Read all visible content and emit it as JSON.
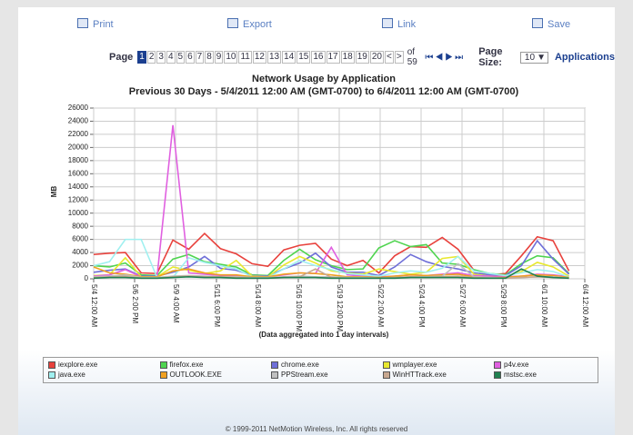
{
  "toolbar": [
    "Print",
    "Export",
    "Link",
    "Save"
  ],
  "pager": {
    "label": "Page",
    "pages": [
      "1",
      "2",
      "3",
      "4",
      "5",
      "6",
      "7",
      "8",
      "9",
      "10",
      "11",
      "12",
      "13",
      "14",
      "15",
      "16",
      "17",
      "18",
      "19",
      "20"
    ],
    "prev": "<",
    "next": ">",
    "of": "of 59",
    "page_size_label": "Page Size:",
    "page_size": "10",
    "unit": "Applications"
  },
  "chart_data": {
    "type": "line",
    "title": "Network Usage by Application",
    "subtitle": "Previous 30 Days - 5/4/2011 12:00 AM (GMT-0700) to 6/4/2011 12:00 AM (GMT-0700)",
    "y_label": "MB",
    "x_label": "(Data aggregated into 1 day intervals)",
    "grid": true,
    "x": [
      "5/4 12:00 AM",
      "5/5 12:00 AM",
      "5/6 12:00 AM",
      "5/7 12:00 AM",
      "5/8 12:00 AM",
      "5/9 12:00 AM",
      "5/10 12:00 AM",
      "5/11 12:00 AM",
      "5/12 12:00 AM",
      "5/13 12:00 AM",
      "5/14 12:00 AM",
      "5/15 12:00 AM",
      "5/16 12:00 AM",
      "5/17 12:00 AM",
      "5/18 12:00 AM",
      "5/19 12:00 AM",
      "5/20 12:00 AM",
      "5/21 12:00 AM",
      "5/22 12:00 AM",
      "5/23 12:00 AM",
      "5/24 12:00 AM",
      "5/25 12:00 AM",
      "5/26 12:00 AM",
      "5/27 12:00 AM",
      "5/28 12:00 AM",
      "5/29 12:00 AM",
      "5/30 12:00 AM",
      "5/31 12:00 AM",
      "6/1 12:00 AM",
      "6/2 12:00 AM",
      "6/3 12:00 AM"
    ],
    "xlim": [
      "5/4 12:00 AM",
      "6/4 12:00 AM"
    ],
    "xticks": [
      "5/4 12:00 AM",
      "5/6 2:00 PM",
      "5/9 4:00 AM",
      "5/11 6:00 PM",
      "5/14 8:00 AM",
      "5/16 10:00 PM",
      "5/19 12:00 PM",
      "5/22 2:00 AM",
      "5/24 4:00 PM",
      "5/27 6:00 AM",
      "5/29 8:00 PM",
      "6/1 10:00 AM",
      "6/4 12:00 AM"
    ],
    "ylim": [
      0,
      26000
    ],
    "yticks": [
      0,
      2000,
      4000,
      6000,
      8000,
      10000,
      12000,
      14000,
      16000,
      18000,
      20000,
      22000,
      24000,
      26000
    ],
    "series": [
      {
        "name": "iexplore.exe",
        "color": "#e8413c",
        "values": [
          3700,
          3900,
          4000,
          900,
          800,
          5900,
          4500,
          6900,
          4600,
          3800,
          2300,
          1900,
          4400,
          5100,
          5400,
          3000,
          2000,
          2800,
          900,
          3500,
          4900,
          4800,
          6300,
          4500,
          1300,
          600,
          800,
          3500,
          6400,
          5800,
          1200
        ]
      },
      {
        "name": "firefox.exe",
        "color": "#4fd44f",
        "values": [
          2000,
          1800,
          2400,
          600,
          500,
          3000,
          3700,
          2600,
          2200,
          1800,
          600,
          500,
          2800,
          4500,
          2900,
          2000,
          1400,
          1500,
          4700,
          5800,
          4900,
          5200,
          2400,
          2200,
          1400,
          800,
          600,
          2300,
          3500,
          3200,
          800
        ]
      },
      {
        "name": "chrome.exe",
        "color": "#6f6fd8",
        "values": [
          1000,
          1300,
          1500,
          400,
          400,
          1000,
          1800,
          3400,
          1600,
          1300,
          500,
          400,
          1500,
          2400,
          3900,
          1800,
          1000,
          1000,
          500,
          1800,
          3700,
          2600,
          1900,
          1500,
          900,
          600,
          500,
          2000,
          5800,
          3000,
          700
        ]
      },
      {
        "name": "wmplayer.exe",
        "color": "#e8e830",
        "values": [
          500,
          600,
          3200,
          300,
          300,
          1800,
          1300,
          800,
          1200,
          2800,
          400,
          300,
          2100,
          3400,
          2400,
          1200,
          900,
          700,
          1500,
          1100,
          700,
          1000,
          3100,
          3400,
          700,
          400,
          300,
          1100,
          2500,
          1800,
          400
        ]
      },
      {
        "name": "p4v.exe",
        "color": "#e060e0",
        "values": [
          400,
          600,
          1400,
          300,
          300,
          23400,
          900,
          700,
          500,
          400,
          300,
          300,
          600,
          900,
          800,
          4800,
          600,
          400,
          300,
          400,
          600,
          500,
          700,
          900,
          500,
          400,
          300,
          400,
          700,
          600,
          300
        ]
      },
      {
        "name": "java.exe",
        "color": "#a0f0f0",
        "values": [
          2000,
          2600,
          6000,
          6000,
          200,
          200,
          3200,
          2500,
          2000,
          1500,
          300,
          200,
          1500,
          2800,
          2000,
          1400,
          800,
          600,
          400,
          900,
          1200,
          1000,
          1600,
          3400,
          1200,
          800,
          500,
          900,
          1400,
          1100,
          300
        ]
      },
      {
        "name": "OUTLOOK.EXE",
        "color": "#f0a020",
        "values": [
          1800,
          900,
          700,
          300,
          300,
          1200,
          1500,
          900,
          600,
          600,
          300,
          300,
          700,
          900,
          800,
          600,
          300,
          300,
          200,
          400,
          600,
          500,
          600,
          700,
          300,
          200,
          200,
          400,
          600,
          500,
          200
        ]
      },
      {
        "name": "PPStream.exe",
        "color": "#c0c0c0",
        "values": [
          300,
          400,
          600,
          200,
          200,
          400,
          500,
          400,
          300,
          300,
          200,
          200,
          300,
          400,
          300,
          300,
          200,
          200,
          100,
          200,
          300,
          300,
          400,
          2300,
          300,
          200,
          100,
          200,
          300,
          300,
          100
        ]
      },
      {
        "name": "WinHTTrack.exe",
        "color": "#c8a890",
        "values": [
          200,
          300,
          400,
          100,
          100,
          300,
          400,
          300,
          300,
          200,
          100,
          100,
          200,
          300,
          1500,
          200,
          100,
          100,
          100,
          200,
          300,
          200,
          300,
          400,
          200,
          100,
          100,
          200,
          300,
          200,
          100
        ]
      },
      {
        "name": "mstsc.exe",
        "color": "#208050",
        "values": [
          100,
          200,
          200,
          100,
          100,
          200,
          300,
          200,
          200,
          100,
          100,
          100,
          200,
          200,
          200,
          100,
          100,
          100,
          100,
          100,
          200,
          200,
          200,
          200,
          100,
          100,
          100,
          1500,
          400,
          200,
          100
        ]
      }
    ]
  },
  "footer": "© 1999-2011 NetMotion Wireless, Inc. All rights reserved"
}
